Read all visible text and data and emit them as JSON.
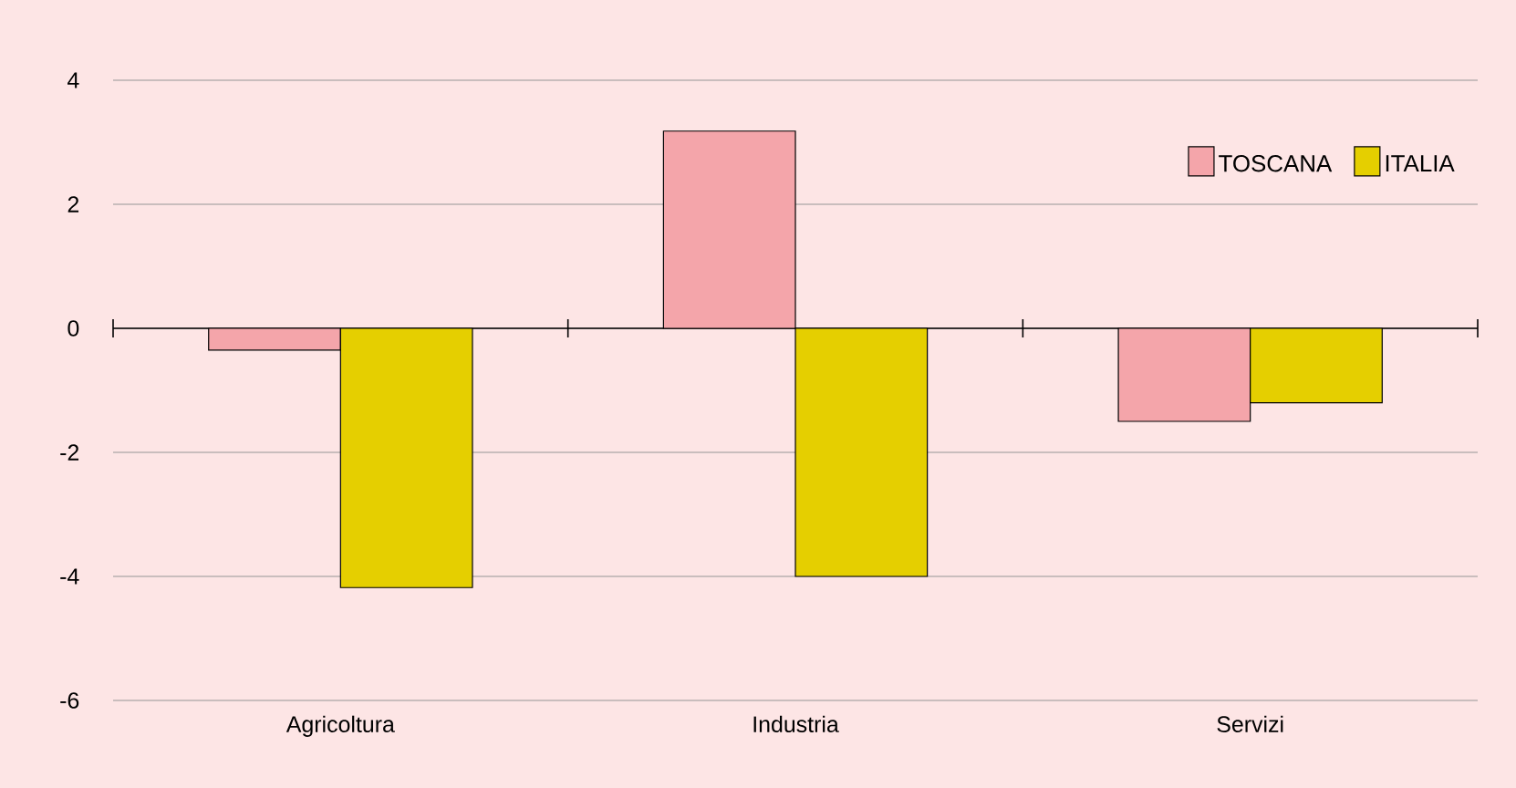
{
  "chart_data": {
    "type": "bar",
    "categories": [
      "Agricoltura",
      "Industria",
      "Servizi"
    ],
    "series": [
      {
        "name": "TOSCANA",
        "color": "#f4a5aa",
        "values": [
          -0.35,
          3.18,
          -1.5
        ]
      },
      {
        "name": "ITALIA",
        "color": "#e5cf00",
        "values": [
          -4.18,
          -4.0,
          -1.2
        ]
      }
    ],
    "ylim": [
      -6,
      4
    ],
    "yticks": [
      -6,
      -4,
      -2,
      0,
      2,
      4
    ],
    "grid": "y",
    "legend": "top right"
  }
}
